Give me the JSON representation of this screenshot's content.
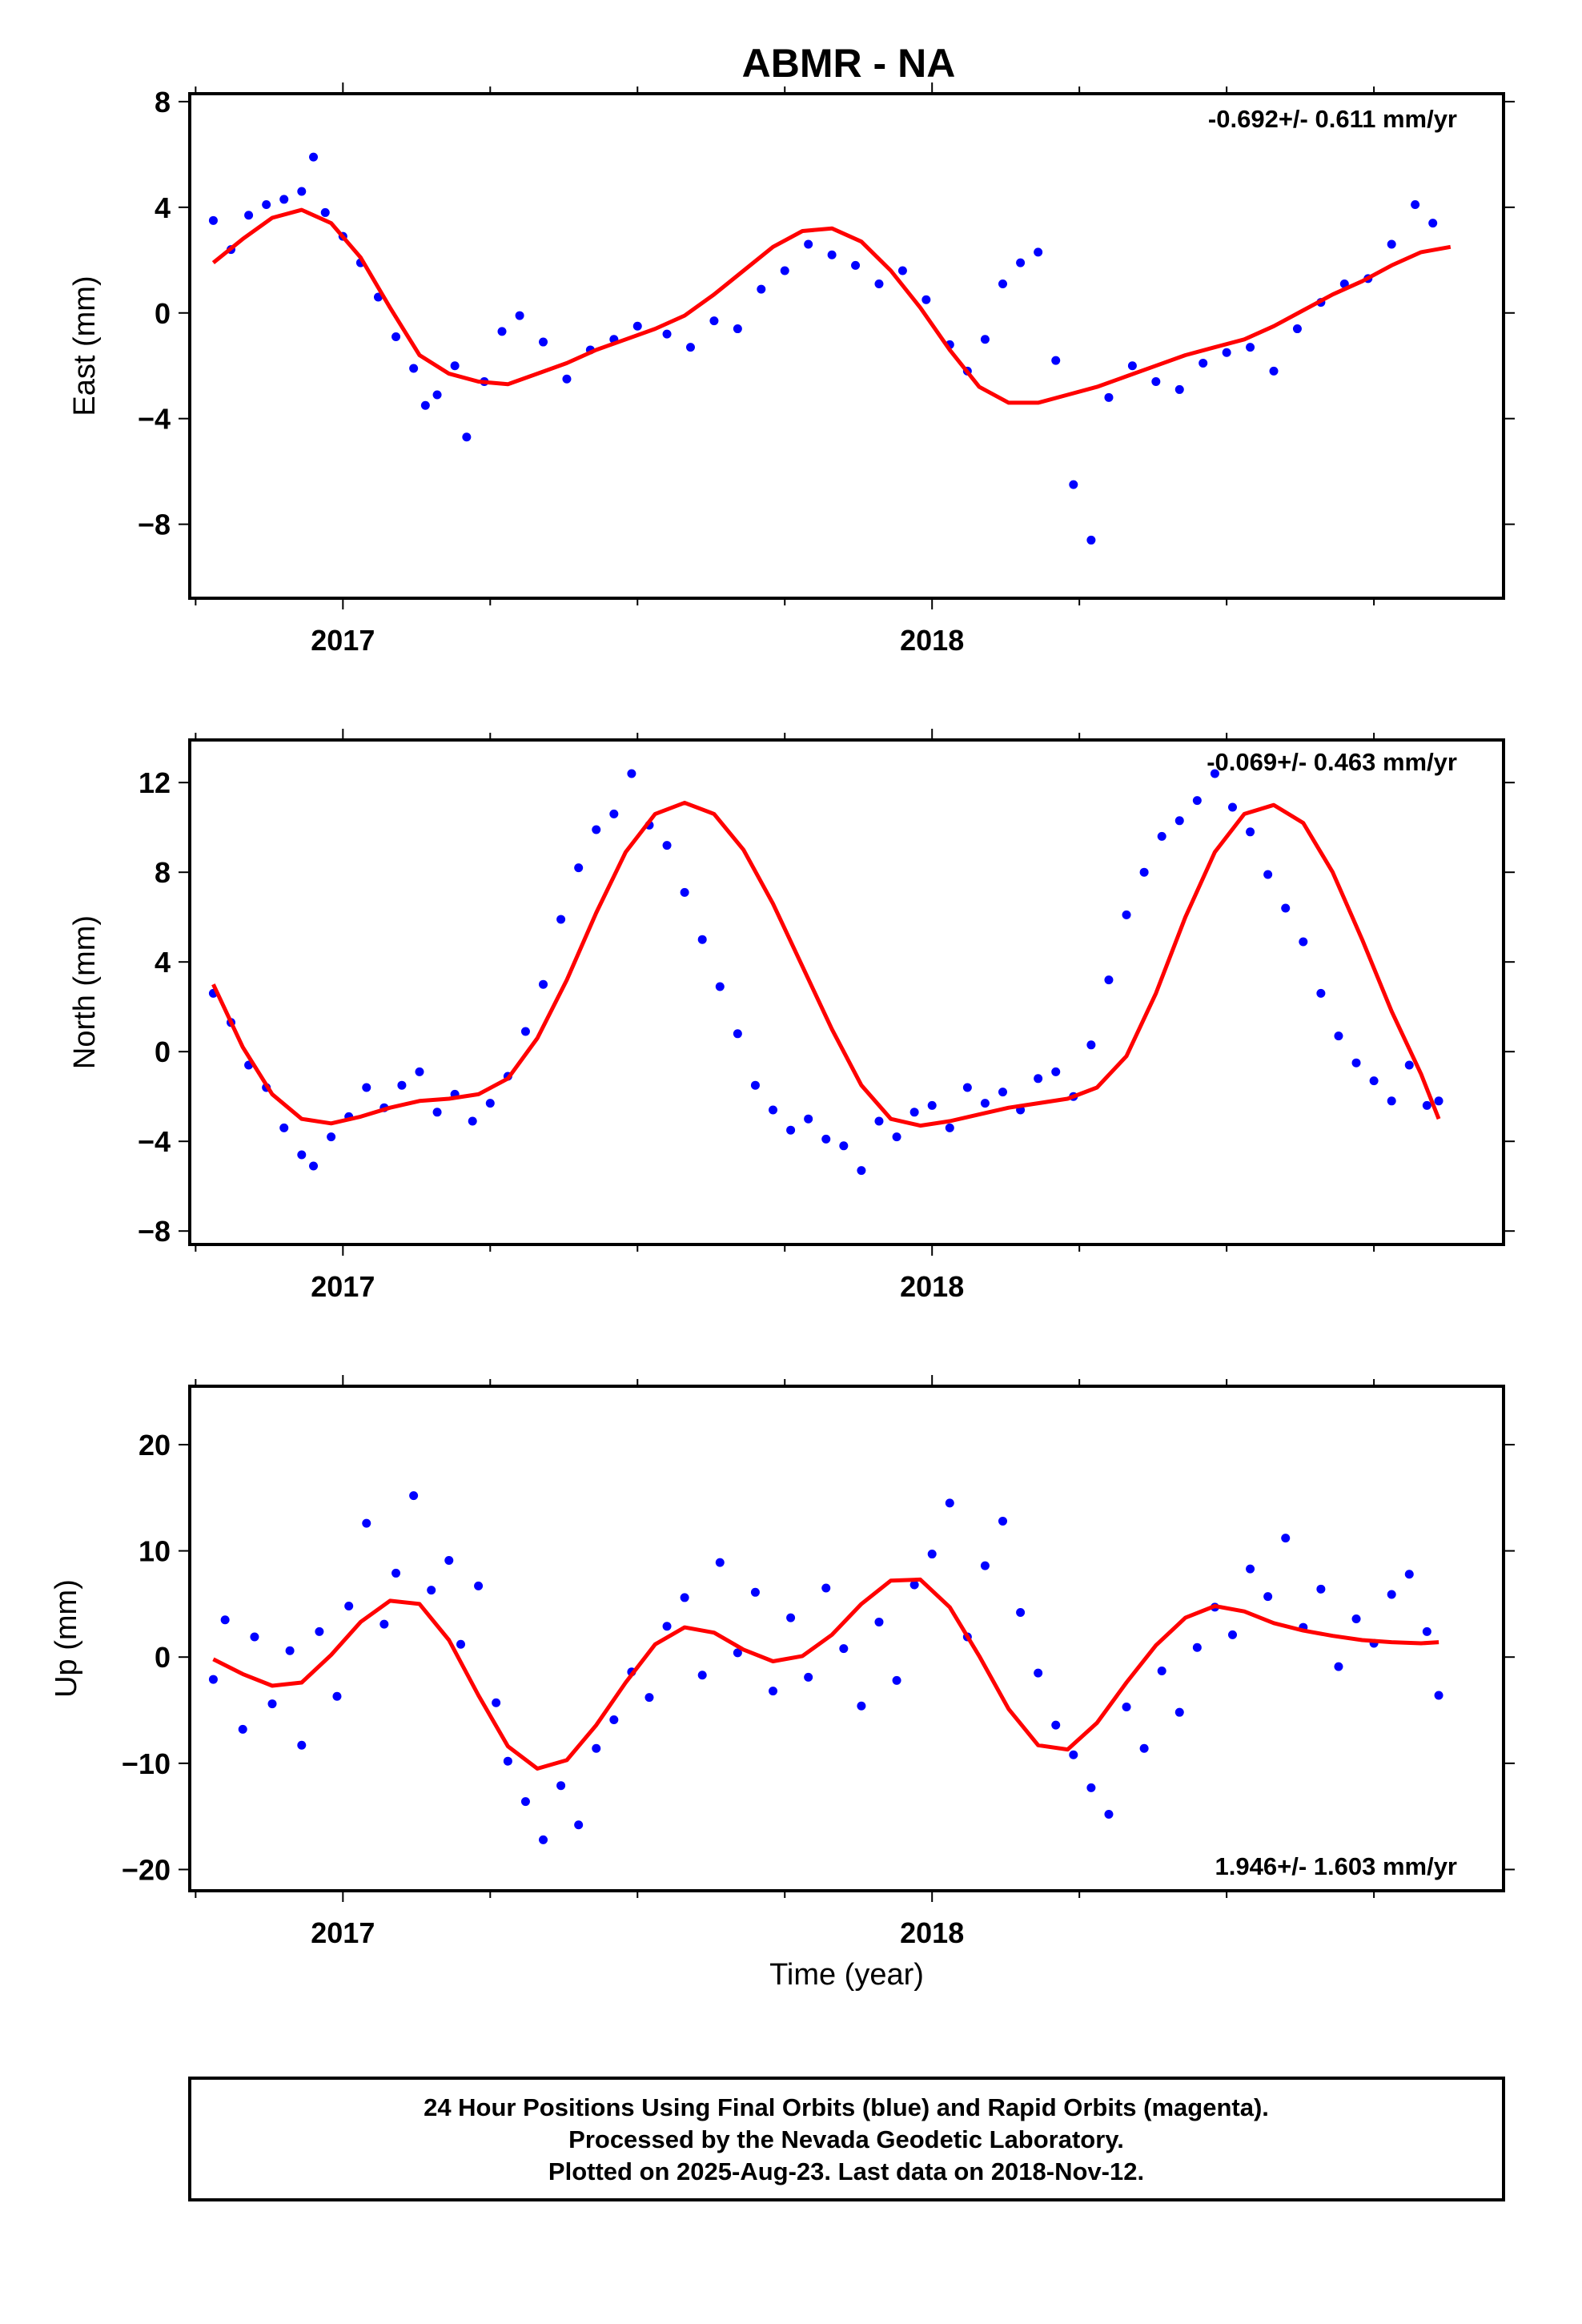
{
  "page_title": "ABMR - NA",
  "colors": {
    "final_orbits": "#0000ff",
    "rapid_orbits": "#ff00ff",
    "model_curve": "#ff0000",
    "frame": "#000000"
  },
  "footer": {
    "line1": "24 Hour Positions Using Final Orbits (blue) and Rapid Orbits (magenta).",
    "line2": "Processed by the Nevada Geodetic Laboratory.",
    "line3": "Plotted on 2025-Aug-23. Last data on 2018-Nov-12."
  },
  "chart_data": [
    {
      "type": "scatter",
      "component": "east",
      "title": "ABMR - NA",
      "xlabel": "",
      "ylabel": "East (mm)",
      "xlim": [
        2016.74,
        2018.97
      ],
      "ylim": [
        -10.8,
        8.3
      ],
      "x_ticks": [
        2017,
        2018
      ],
      "x_tick_labels": [
        "2017",
        "2018"
      ],
      "y_ticks": [
        -8,
        -4,
        0,
        4,
        8
      ],
      "y_tick_labels": [
        "−8",
        "−4",
        "0",
        "4",
        "8"
      ],
      "rate_label": "-0.692+/- 0.611 mm/yr",
      "grid": false,
      "series": [
        {
          "kind": "points",
          "x": [
            2016.78,
            2016.81,
            2016.84,
            2016.87,
            2016.9,
            2016.93,
            2016.95,
            2016.97,
            2017.0,
            2017.03,
            2017.06,
            2017.09,
            2017.12,
            2017.14,
            2017.16,
            2017.19,
            2017.21,
            2017.24,
            2017.27,
            2017.3,
            2017.34,
            2017.38,
            2017.42,
            2017.46,
            2017.5,
            2017.55,
            2017.59,
            2017.63,
            2017.67,
            2017.71,
            2017.75,
            2017.79,
            2017.83,
            2017.87,
            2017.91,
            2017.95,
            2017.99,
            2018.03,
            2018.06,
            2018.09,
            2018.12,
            2018.15,
            2018.18,
            2018.21,
            2018.24,
            2018.27,
            2018.3,
            2018.34,
            2018.38,
            2018.42,
            2018.46,
            2018.5,
            2018.54,
            2018.58,
            2018.62,
            2018.66,
            2018.7,
            2018.74,
            2018.78,
            2018.82,
            2018.85
          ],
          "y": [
            3.5,
            2.4,
            3.7,
            4.1,
            4.3,
            4.6,
            5.9,
            3.8,
            2.9,
            1.9,
            0.6,
            -0.9,
            -2.1,
            -3.5,
            -3.1,
            -2.0,
            -4.7,
            -2.6,
            -0.7,
            -0.1,
            -1.1,
            -2.5,
            -1.4,
            -1.0,
            -0.5,
            -0.8,
            -1.3,
            -0.3,
            -0.6,
            0.9,
            1.6,
            2.6,
            2.2,
            1.8,
            1.1,
            1.6,
            0.5,
            -1.2,
            -2.2,
            -1.0,
            1.1,
            1.9,
            2.3,
            -1.8,
            -6.5,
            -8.6,
            -3.2,
            -2.0,
            -2.6,
            -2.9,
            -1.9,
            -1.5,
            -1.3,
            -2.2,
            -0.6,
            0.4,
            1.1,
            1.3,
            2.6,
            4.1,
            3.4
          ]
        },
        {
          "kind": "model",
          "x": [
            2016.78,
            2016.83,
            2016.88,
            2016.93,
            2016.98,
            2017.03,
            2017.08,
            2017.13,
            2017.18,
            2017.23,
            2017.28,
            2017.33,
            2017.38,
            2017.43,
            2017.48,
            2017.53,
            2017.58,
            2017.63,
            2017.68,
            2017.73,
            2017.78,
            2017.83,
            2017.88,
            2017.93,
            2017.98,
            2018.03,
            2018.08,
            2018.13,
            2018.18,
            2018.23,
            2018.28,
            2018.33,
            2018.38,
            2018.43,
            2018.48,
            2018.53,
            2018.58,
            2018.63,
            2018.68,
            2018.73,
            2018.78,
            2018.83,
            2018.88
          ],
          "y": [
            1.9,
            2.8,
            3.6,
            3.9,
            3.4,
            2.1,
            0.2,
            -1.6,
            -2.3,
            -2.6,
            -2.7,
            -2.3,
            -1.9,
            -1.4,
            -1.0,
            -0.6,
            -0.1,
            0.7,
            1.6,
            2.5,
            3.1,
            3.2,
            2.7,
            1.6,
            0.2,
            -1.4,
            -2.8,
            -3.4,
            -3.4,
            -3.1,
            -2.8,
            -2.4,
            -2.0,
            -1.6,
            -1.3,
            -1.0,
            -0.5,
            0.1,
            0.7,
            1.2,
            1.8,
            2.3,
            2.5
          ]
        }
      ]
    },
    {
      "type": "scatter",
      "component": "north",
      "title": "",
      "xlabel": "",
      "ylabel": "North (mm)",
      "xlim": [
        2016.74,
        2018.97
      ],
      "ylim": [
        -8.6,
        13.9
      ],
      "x_ticks": [
        2017,
        2018
      ],
      "x_tick_labels": [
        "2017",
        "2018"
      ],
      "y_ticks": [
        -8,
        -4,
        0,
        4,
        8,
        12
      ],
      "y_tick_labels": [
        "−8",
        "−4",
        "0",
        "4",
        "8",
        "12"
      ],
      "rate_label": "-0.069+/- 0.463 mm/yr",
      "grid": false,
      "series": [
        {
          "kind": "points",
          "x": [
            2016.78,
            2016.81,
            2016.84,
            2016.87,
            2016.9,
            2016.93,
            2016.95,
            2016.98,
            2017.01,
            2017.04,
            2017.07,
            2017.1,
            2017.13,
            2017.16,
            2017.19,
            2017.22,
            2017.25,
            2017.28,
            2017.31,
            2017.34,
            2017.37,
            2017.4,
            2017.43,
            2017.46,
            2017.49,
            2017.52,
            2017.55,
            2017.58,
            2017.61,
            2017.64,
            2017.67,
            2017.7,
            2017.73,
            2017.76,
            2017.79,
            2017.82,
            2017.85,
            2017.88,
            2017.91,
            2017.94,
            2017.97,
            2018.0,
            2018.03,
            2018.06,
            2018.09,
            2018.12,
            2018.15,
            2018.18,
            2018.21,
            2018.24,
            2018.27,
            2018.3,
            2018.33,
            2018.36,
            2018.39,
            2018.42,
            2018.45,
            2018.48,
            2018.51,
            2018.54,
            2018.57,
            2018.6,
            2018.63,
            2018.66,
            2018.69,
            2018.72,
            2018.75,
            2018.78,
            2018.81,
            2018.84,
            2018.86
          ],
          "y": [
            2.6,
            1.3,
            -0.6,
            -1.6,
            -3.4,
            -4.6,
            -5.1,
            -3.8,
            -2.9,
            -1.6,
            -2.5,
            -1.5,
            -0.9,
            -2.7,
            -1.9,
            -3.1,
            -2.3,
            -1.1,
            0.9,
            3.0,
            5.9,
            8.2,
            9.9,
            10.6,
            12.4,
            10.1,
            9.2,
            7.1,
            5.0,
            2.9,
            0.8,
            -1.5,
            -2.6,
            -3.5,
            -3.0,
            -3.9,
            -4.2,
            -5.3,
            -3.1,
            -3.8,
            -2.7,
            -2.4,
            -3.4,
            -1.6,
            -2.3,
            -1.8,
            -2.6,
            -1.2,
            -0.9,
            -2.0,
            0.3,
            3.2,
            6.1,
            8.0,
            9.6,
            10.3,
            11.2,
            12.4,
            10.9,
            9.8,
            7.9,
            6.4,
            4.9,
            2.6,
            0.7,
            -0.5,
            -1.3,
            -2.2,
            -0.6,
            -2.4,
            -2.2
          ]
        },
        {
          "kind": "model",
          "x": [
            2016.78,
            2016.83,
            2016.88,
            2016.93,
            2016.98,
            2017.03,
            2017.08,
            2017.13,
            2017.18,
            2017.23,
            2017.28,
            2017.33,
            2017.38,
            2017.43,
            2017.48,
            2017.53,
            2017.58,
            2017.63,
            2017.68,
            2017.73,
            2017.78,
            2017.83,
            2017.88,
            2017.93,
            2017.98,
            2018.03,
            2018.08,
            2018.13,
            2018.18,
            2018.23,
            2018.28,
            2018.33,
            2018.38,
            2018.43,
            2018.48,
            2018.53,
            2018.58,
            2018.63,
            2018.68,
            2018.73,
            2018.78,
            2018.83,
            2018.86
          ],
          "y": [
            3.0,
            0.2,
            -1.9,
            -3.0,
            -3.2,
            -2.9,
            -2.5,
            -2.2,
            -2.1,
            -1.9,
            -1.2,
            0.6,
            3.2,
            6.2,
            8.9,
            10.6,
            11.1,
            10.6,
            9.0,
            6.6,
            3.8,
            1.0,
            -1.5,
            -3.0,
            -3.3,
            -3.1,
            -2.8,
            -2.5,
            -2.3,
            -2.1,
            -1.6,
            -0.2,
            2.6,
            6.0,
            8.9,
            10.6,
            11.0,
            10.2,
            8.0,
            5.0,
            1.8,
            -1.0,
            -3.0
          ]
        }
      ]
    },
    {
      "type": "scatter",
      "component": "up",
      "title": "",
      "xlabel": "Time (year)",
      "ylabel": "Up (mm)",
      "xlim": [
        2016.74,
        2018.97
      ],
      "ylim": [
        -22.0,
        25.5
      ],
      "x_ticks": [
        2017,
        2018
      ],
      "x_tick_labels": [
        "2017",
        "2018"
      ],
      "y_ticks": [
        -20,
        -10,
        0,
        10,
        20
      ],
      "y_tick_labels": [
        "−20",
        "−10",
        "0",
        "10",
        "20"
      ],
      "rate_label": "1.946+/- 1.603 mm/yr",
      "grid": false,
      "series": [
        {
          "kind": "points",
          "x": [
            2016.78,
            2016.8,
            2016.83,
            2016.85,
            2016.88,
            2016.91,
            2016.93,
            2016.96,
            2016.99,
            2017.01,
            2017.04,
            2017.07,
            2017.09,
            2017.12,
            2017.15,
            2017.18,
            2017.2,
            2017.23,
            2017.26,
            2017.28,
            2017.31,
            2017.34,
            2017.37,
            2017.4,
            2017.43,
            2017.46,
            2017.49,
            2017.52,
            2017.55,
            2017.58,
            2017.61,
            2017.64,
            2017.67,
            2017.7,
            2017.73,
            2017.76,
            2017.79,
            2017.82,
            2017.85,
            2017.88,
            2017.91,
            2017.94,
            2017.97,
            2018.0,
            2018.03,
            2018.06,
            2018.09,
            2018.12,
            2018.15,
            2018.18,
            2018.21,
            2018.24,
            2018.27,
            2018.3,
            2018.33,
            2018.36,
            2018.39,
            2018.42,
            2018.45,
            2018.48,
            2018.51,
            2018.54,
            2018.57,
            2018.6,
            2018.63,
            2018.66,
            2018.69,
            2018.72,
            2018.75,
            2018.78,
            2018.81,
            2018.84,
            2018.86
          ],
          "y": [
            -2.1,
            3.5,
            -6.8,
            1.9,
            -4.4,
            0.6,
            -8.3,
            2.4,
            -3.7,
            4.8,
            12.6,
            3.1,
            7.9,
            15.2,
            6.3,
            9.1,
            1.2,
            6.7,
            -4.3,
            -9.8,
            -13.6,
            -17.2,
            -12.1,
            -15.8,
            -8.6,
            -5.9,
            -1.4,
            -3.8,
            2.9,
            5.6,
            -1.7,
            8.9,
            0.4,
            6.1,
            -3.2,
            3.7,
            -1.9,
            6.5,
            0.8,
            -4.6,
            3.3,
            -2.2,
            6.8,
            9.7,
            14.5,
            1.9,
            8.6,
            12.8,
            4.2,
            -1.5,
            -6.4,
            -9.2,
            -12.3,
            -14.8,
            -4.7,
            -8.6,
            -1.3,
            -5.2,
            0.9,
            4.7,
            2.1,
            8.3,
            5.7,
            11.2,
            2.8,
            6.4,
            -0.9,
            3.6,
            1.3,
            5.9,
            7.8,
            2.4,
            -3.6
          ]
        },
        {
          "kind": "model",
          "x": [
            2016.78,
            2016.83,
            2016.88,
            2016.93,
            2016.98,
            2017.03,
            2017.08,
            2017.13,
            2017.18,
            2017.23,
            2017.28,
            2017.33,
            2017.38,
            2017.43,
            2017.48,
            2017.53,
            2017.58,
            2017.63,
            2017.68,
            2017.73,
            2017.78,
            2017.83,
            2017.88,
            2017.93,
            2017.98,
            2018.03,
            2018.08,
            2018.13,
            2018.18,
            2018.23,
            2018.28,
            2018.33,
            2018.38,
            2018.43,
            2018.48,
            2018.53,
            2018.58,
            2018.63,
            2018.68,
            2018.73,
            2018.78,
            2018.83,
            2018.86
          ],
          "y": [
            -0.2,
            -1.6,
            -2.7,
            -2.4,
            0.2,
            3.3,
            5.3,
            5.0,
            1.6,
            -3.6,
            -8.4,
            -10.5,
            -9.7,
            -6.4,
            -2.4,
            1.2,
            2.8,
            2.3,
            0.7,
            -0.4,
            0.1,
            2.1,
            5.0,
            7.2,
            7.3,
            4.7,
            0.1,
            -4.9,
            -8.3,
            -8.7,
            -6.2,
            -2.4,
            1.1,
            3.7,
            4.8,
            4.3,
            3.2,
            2.5,
            2.0,
            1.6,
            1.4,
            1.3,
            1.4
          ]
        }
      ]
    }
  ]
}
